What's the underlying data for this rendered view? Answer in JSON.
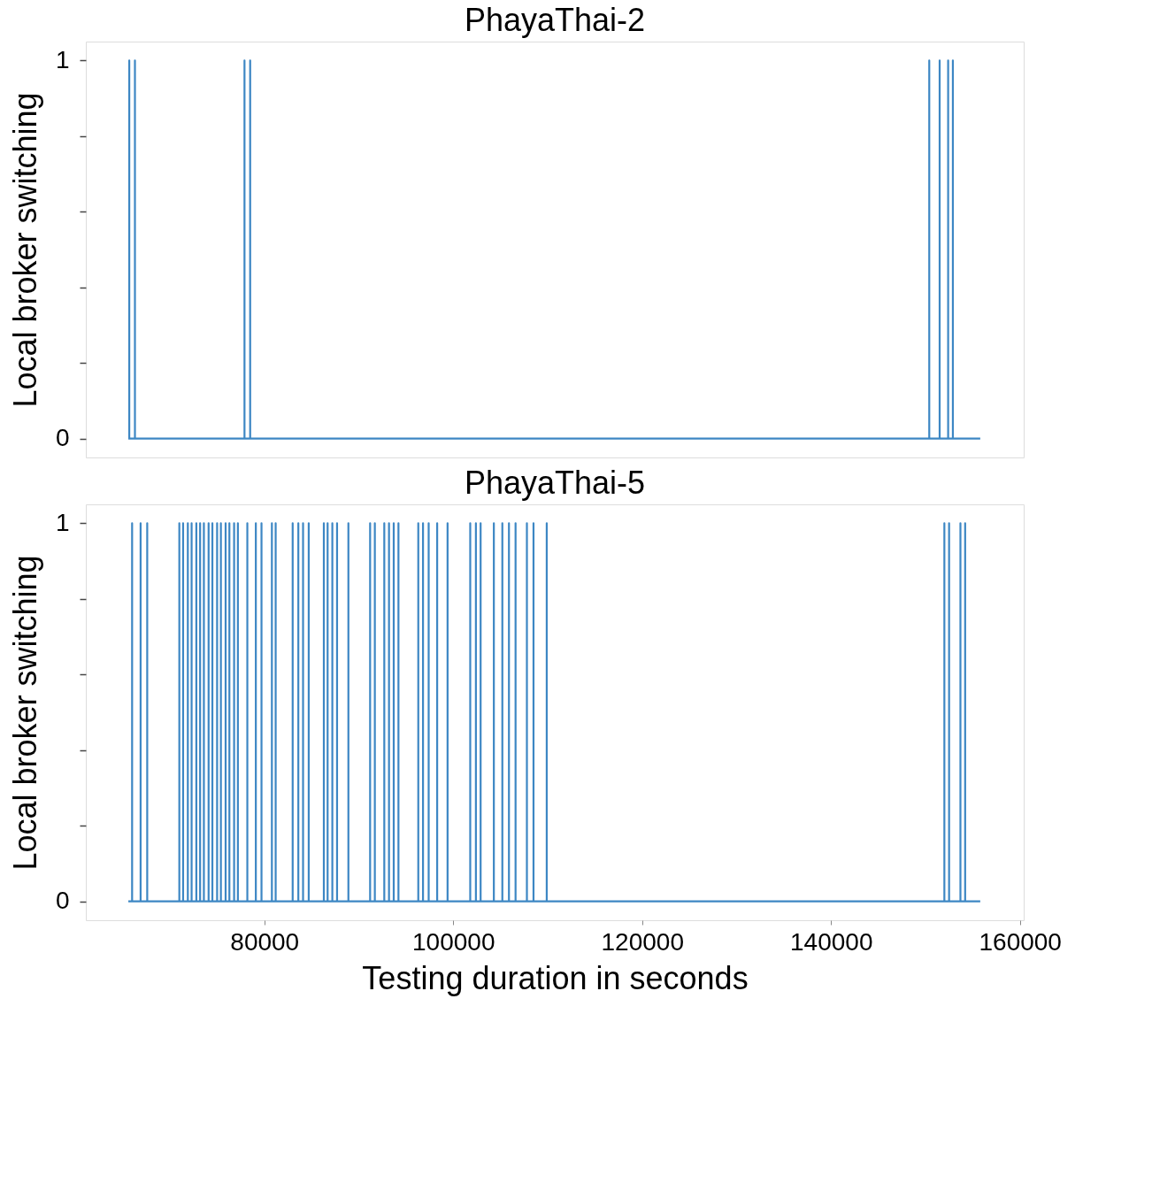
{
  "chart_data": [
    {
      "type": "line",
      "title": "PhayaThai-2",
      "ylabel": "Local broker switching",
      "xlim": [
        61100,
        160400
      ],
      "ylim": [
        -0.05,
        1.05
      ],
      "xticks": [
        80000,
        100000,
        120000,
        140000,
        160000
      ],
      "yticks": [
        0,
        {
          "value": 0.2,
          "label": null
        },
        {
          "value": 0.4,
          "label": null
        },
        {
          "value": 0.6,
          "label": null
        },
        {
          "value": 0.8,
          "label": null
        },
        1
      ],
      "tick_labels": "y",
      "grid": false,
      "marker": "none",
      "line_style": "solid",
      "series": [
        {
          "color": "#3d87c4",
          "x": [
            65600,
            65700,
            65700,
            65700,
            66300,
            66300,
            66300,
            77900,
            77900,
            77900,
            78500,
            78500,
            78500,
            150400,
            150400,
            150400,
            151500,
            151500,
            151500,
            152400,
            152400,
            152400,
            152900,
            152900,
            152900,
            155800
          ],
          "values": [
            0,
            0,
            1,
            0,
            0,
            1,
            0,
            0,
            1,
            0,
            0,
            1,
            0,
            0,
            1,
            0,
            0,
            1,
            0,
            0,
            1,
            0,
            0,
            1,
            0,
            0
          ]
        }
      ]
    },
    {
      "type": "line",
      "title": "PhayaThai-5",
      "xlabel": "Testing duration in seconds",
      "ylabel": "Local broker switching",
      "xlim": [
        61100,
        160400
      ],
      "ylim": [
        -0.05,
        1.05
      ],
      "xticks": [
        80000,
        100000,
        120000,
        140000,
        160000
      ],
      "yticks": [
        0,
        {
          "value": 0.2,
          "label": null
        },
        {
          "value": 0.4,
          "label": null
        },
        {
          "value": 0.6,
          "label": null
        },
        {
          "value": 0.8,
          "label": null
        },
        1
      ],
      "grid": false,
      "marker": "none",
      "line_style": "solid",
      "series": [
        {
          "color": "#3d87c4",
          "x": [
            65600,
            66000,
            66000,
            66000,
            66900,
            66900,
            66900,
            67600,
            67600,
            67600,
            71000,
            71000,
            71000,
            71400,
            71400,
            71400,
            71900,
            71900,
            71900,
            72300,
            72300,
            72300,
            72800,
            72800,
            72800,
            73200,
            73200,
            73200,
            73600,
            73600,
            73600,
            74100,
            74100,
            74100,
            74500,
            74500,
            74500,
            75000,
            75000,
            75000,
            75400,
            75400,
            75400,
            75900,
            75900,
            75900,
            76300,
            76300,
            76300,
            76800,
            76800,
            76800,
            77200,
            77200,
            77200,
            78200,
            78200,
            78200,
            79100,
            79100,
            79100,
            79700,
            79700,
            79700,
            80800,
            80800,
            80800,
            81200,
            81200,
            81200,
            83000,
            83000,
            83000,
            83600,
            83600,
            83600,
            84100,
            84100,
            84100,
            84700,
            84700,
            84700,
            86300,
            86300,
            86300,
            86700,
            86700,
            86700,
            87200,
            87200,
            87200,
            87700,
            87700,
            87700,
            88900,
            88900,
            88900,
            91200,
            91200,
            91200,
            91700,
            91700,
            91700,
            92700,
            92700,
            92700,
            93200,
            93200,
            93200,
            93700,
            93700,
            93700,
            94200,
            94200,
            94200,
            96300,
            96300,
            96300,
            96800,
            96800,
            96800,
            97400,
            97400,
            97400,
            98300,
            98300,
            98300,
            99400,
            99400,
            99400,
            101800,
            101800,
            101800,
            102400,
            102400,
            102400,
            102900,
            102900,
            102900,
            104300,
            104300,
            104300,
            105200,
            105200,
            105200,
            105900,
            105900,
            105900,
            106600,
            106600,
            106600,
            107800,
            107800,
            107800,
            108500,
            108500,
            108500,
            109900,
            109900,
            109900,
            152000,
            152000,
            152000,
            152500,
            152500,
            152500,
            153700,
            153700,
            153700,
            154200,
            154200,
            154200,
            155800
          ],
          "values": [
            0,
            0,
            1,
            0,
            0,
            1,
            0,
            0,
            1,
            0,
            0,
            1,
            0,
            0,
            1,
            0,
            0,
            1,
            0,
            0,
            1,
            0,
            0,
            1,
            0,
            0,
            1,
            0,
            0,
            1,
            0,
            0,
            1,
            0,
            0,
            1,
            0,
            0,
            1,
            0,
            0,
            1,
            0,
            0,
            1,
            0,
            0,
            1,
            0,
            0,
            1,
            0,
            0,
            1,
            0,
            0,
            1,
            0,
            0,
            1,
            0,
            0,
            1,
            0,
            0,
            1,
            0,
            0,
            1,
            0,
            0,
            1,
            0,
            0,
            1,
            0,
            0,
            1,
            0,
            0,
            1,
            0,
            0,
            1,
            0,
            0,
            1,
            0,
            0,
            1,
            0,
            0,
            1,
            0,
            0,
            1,
            0,
            0,
            1,
            0,
            0,
            1,
            0,
            0,
            1,
            0,
            0,
            1,
            0,
            0,
            1,
            0,
            0,
            1,
            0,
            0,
            1,
            0,
            0,
            1,
            0,
            0,
            1,
            0,
            0,
            1,
            0,
            0,
            1,
            0,
            0,
            1,
            0,
            0,
            1,
            0,
            0,
            1,
            0,
            0,
            1,
            0,
            0,
            1,
            0,
            0,
            1,
            0,
            0,
            1,
            0,
            0,
            1,
            0,
            0,
            1,
            0,
            0,
            1,
            0,
            0,
            1,
            0,
            0,
            1,
            0,
            0,
            1,
            0,
            0,
            1,
            0,
            0
          ]
        }
      ]
    }
  ]
}
